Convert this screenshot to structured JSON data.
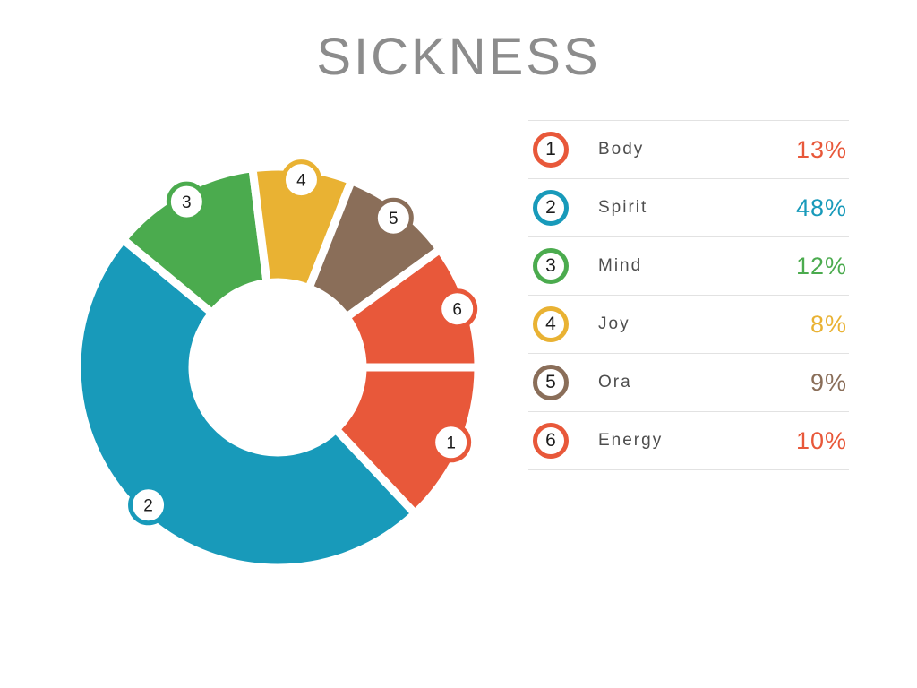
{
  "title": "SICKNESS",
  "chart_data": {
    "type": "pie",
    "subtype": "donut",
    "title": "SICKNESS",
    "units": "%",
    "direction": "clockwise",
    "start_angle_deg": 0,
    "inner_radius_ratio": 0.45,
    "legend_position": "right",
    "segments": [
      {
        "number": 1,
        "label": "Body",
        "value": 13,
        "color": "#E8583A"
      },
      {
        "number": 2,
        "label": "Spirit",
        "value": 48,
        "color": "#189ABA"
      },
      {
        "number": 3,
        "label": "Mind",
        "value": 12,
        "color": "#4BAB4E"
      },
      {
        "number": 4,
        "label": "Joy",
        "value": 8,
        "color": "#E9B233"
      },
      {
        "number": 5,
        "label": "Ora",
        "value": 9,
        "color": "#8A6E59"
      },
      {
        "number": 6,
        "label": "Energy",
        "value": 10,
        "color": "#E8583A"
      }
    ]
  }
}
